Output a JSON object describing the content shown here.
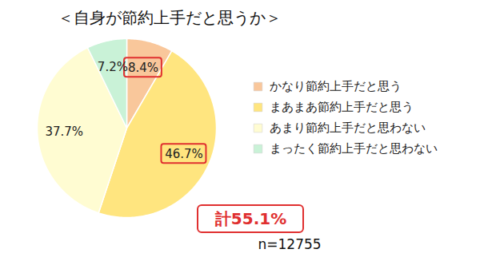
{
  "chart_data": {
    "type": "pie",
    "title": "＜自身が節約上手だと思うか＞",
    "categories": [
      "かなり節約上手だと思う",
      "まあまあ節約上手だと思う",
      "あまり節約上手だと思わない",
      "まったく節約上手だと思わない"
    ],
    "values": [
      8.4,
      46.7,
      37.7,
      7.2
    ],
    "value_labels": [
      "8.4%",
      "46.7%",
      "37.7%",
      "7.2%"
    ],
    "colors": [
      "#f9c79b",
      "#ffe57f",
      "#fffcd2",
      "#c9f2d7"
    ],
    "data_labels": true,
    "legend": "right",
    "annotations": [
      "計55.1%",
      "n=12755"
    ]
  }
}
